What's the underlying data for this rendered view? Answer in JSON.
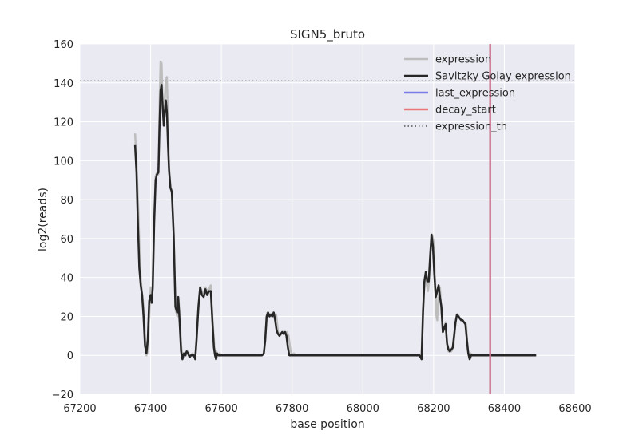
{
  "chart_data": {
    "type": "line",
    "title": "SIGN5_bruto",
    "xlabel": "base position",
    "ylabel": "log2(reads)",
    "xlim": [
      67200,
      68600
    ],
    "ylim": [
      -20,
      160
    ],
    "xticks": [
      67200,
      67400,
      67600,
      67800,
      68000,
      68200,
      68400,
      68600
    ],
    "yticks": [
      -20,
      0,
      20,
      40,
      60,
      80,
      100,
      120,
      140,
      160
    ],
    "xtick_labels": [
      "67200",
      "67400",
      "67600",
      "67800",
      "68000",
      "68200",
      "68400",
      "68600"
    ],
    "ytick_labels": [
      "−20",
      "0",
      "20",
      "40",
      "60",
      "80",
      "100",
      "120",
      "140",
      "160"
    ],
    "grid": true,
    "legend_position": "top-right",
    "colors": {
      "background": "#EAEAF2",
      "grid": "#FFFFFF",
      "expression": "#BDBDBD",
      "savitzky": "#262626",
      "last_expression": "#7B7BEA",
      "decay_start": "#E87878",
      "expression_th": "#333333",
      "overlap_line": "#A1378B"
    },
    "series": [
      {
        "name": "expression",
        "style": "solid",
        "points": [
          [
            67356,
            114
          ],
          [
            67360,
            100
          ],
          [
            67365,
            75
          ],
          [
            67370,
            45
          ],
          [
            67375,
            33
          ],
          [
            67380,
            25
          ],
          [
            67385,
            8
          ],
          [
            67388,
            0
          ],
          [
            67392,
            2
          ],
          [
            67397,
            22
          ],
          [
            67400,
            35
          ],
          [
            67403,
            28
          ],
          [
            67406,
            36
          ],
          [
            67410,
            70
          ],
          [
            67414,
            92
          ],
          [
            67418,
            94
          ],
          [
            67422,
            93
          ],
          [
            67425,
            125
          ],
          [
            67428,
            151
          ],
          [
            67431,
            150
          ],
          [
            67434,
            128
          ],
          [
            67437,
            120
          ],
          [
            67440,
            132
          ],
          [
            67443,
            141
          ],
          [
            67446,
            143
          ],
          [
            67449,
            120
          ],
          [
            67452,
            97
          ],
          [
            67456,
            86
          ],
          [
            67460,
            85
          ],
          [
            67465,
            62
          ],
          [
            67470,
            24
          ],
          [
            67475,
            20
          ],
          [
            67478,
            30
          ],
          [
            67482,
            22
          ],
          [
            67486,
            5
          ],
          [
            67490,
            0
          ],
          [
            67495,
            1
          ],
          [
            67500,
            0
          ],
          [
            67505,
            2
          ],
          [
            67510,
            0
          ],
          [
            67514,
            0
          ],
          [
            67518,
            1
          ],
          [
            67522,
            0
          ],
          [
            67526,
            0
          ],
          [
            67530,
            10
          ],
          [
            67535,
            24
          ],
          [
            67540,
            35
          ],
          [
            67545,
            33
          ],
          [
            67550,
            32
          ],
          [
            67555,
            35
          ],
          [
            67560,
            33
          ],
          [
            67565,
            34
          ],
          [
            67570,
            36
          ],
          [
            67575,
            18
          ],
          [
            67580,
            5
          ],
          [
            67583,
            0
          ],
          [
            67586,
            2
          ],
          [
            67590,
            0
          ],
          [
            67595,
            1
          ],
          [
            67600,
            0
          ],
          [
            67700,
            0
          ],
          [
            67715,
            0
          ],
          [
            67720,
            1
          ],
          [
            67725,
            12
          ],
          [
            67730,
            22
          ],
          [
            67735,
            21
          ],
          [
            67740,
            20
          ],
          [
            67745,
            22
          ],
          [
            67750,
            21
          ],
          [
            67755,
            21
          ],
          [
            67760,
            12
          ],
          [
            67765,
            10
          ],
          [
            67770,
            11
          ],
          [
            67775,
            12
          ],
          [
            67780,
            11
          ],
          [
            67785,
            12
          ],
          [
            67790,
            10
          ],
          [
            67795,
            3
          ],
          [
            67800,
            0
          ],
          [
            67805,
            1
          ],
          [
            67810,
            0
          ],
          [
            67850,
            0
          ],
          [
            68150,
            0
          ],
          [
            68162,
            0
          ],
          [
            68166,
            0
          ],
          [
            68170,
            25
          ],
          [
            68175,
            40
          ],
          [
            68180,
            37
          ],
          [
            68184,
            33
          ],
          [
            68188,
            40
          ],
          [
            68192,
            55
          ],
          [
            68196,
            62
          ],
          [
            68200,
            58
          ],
          [
            68204,
            40
          ],
          [
            68208,
            20
          ],
          [
            68210,
            18
          ],
          [
            68214,
            32
          ],
          [
            68218,
            35
          ],
          [
            68222,
            22
          ],
          [
            68226,
            12
          ],
          [
            68230,
            14
          ],
          [
            68234,
            17
          ],
          [
            68238,
            5
          ],
          [
            68242,
            2
          ],
          [
            68246,
            3
          ],
          [
            68250,
            2
          ],
          [
            68256,
            4
          ],
          [
            68262,
            17
          ],
          [
            68267,
            21
          ],
          [
            68272,
            20
          ],
          [
            68277,
            18
          ],
          [
            68282,
            18
          ],
          [
            68287,
            17
          ],
          [
            68292,
            16
          ],
          [
            68296,
            3
          ],
          [
            68300,
            0
          ],
          [
            68305,
            1
          ],
          [
            68310,
            0
          ],
          [
            68330,
            0
          ],
          [
            68400,
            0
          ],
          [
            68470,
            0
          ]
        ]
      },
      {
        "name": "Savitzky Golay expression",
        "style": "solid",
        "points": [
          [
            67356,
            108
          ],
          [
            67360,
            94
          ],
          [
            67364,
            68
          ],
          [
            67368,
            45
          ],
          [
            67372,
            36
          ],
          [
            67376,
            31
          ],
          [
            67380,
            20
          ],
          [
            67384,
            5
          ],
          [
            67388,
            1
          ],
          [
            67392,
            8
          ],
          [
            67396,
            28
          ],
          [
            67400,
            31
          ],
          [
            67403,
            27
          ],
          [
            67406,
            35
          ],
          [
            67410,
            68
          ],
          [
            67414,
            90
          ],
          [
            67418,
            93
          ],
          [
            67422,
            94
          ],
          [
            67425,
            116
          ],
          [
            67428,
            136
          ],
          [
            67431,
            139
          ],
          [
            67434,
            128
          ],
          [
            67437,
            118
          ],
          [
            67440,
            125
          ],
          [
            67443,
            131
          ],
          [
            67446,
            125
          ],
          [
            67449,
            108
          ],
          [
            67452,
            95
          ],
          [
            67456,
            86
          ],
          [
            67460,
            84
          ],
          [
            67465,
            62
          ],
          [
            67470,
            25
          ],
          [
            67475,
            22
          ],
          [
            67478,
            30
          ],
          [
            67482,
            17
          ],
          [
            67486,
            2
          ],
          [
            67490,
            -2
          ],
          [
            67494,
            1
          ],
          [
            67498,
            0
          ],
          [
            67502,
            2
          ],
          [
            67506,
            1
          ],
          [
            67510,
            -1
          ],
          [
            67514,
            0
          ],
          [
            67518,
            0
          ],
          [
            67522,
            0
          ],
          [
            67526,
            -2
          ],
          [
            67530,
            8
          ],
          [
            67535,
            25
          ],
          [
            67540,
            35
          ],
          [
            67545,
            31
          ],
          [
            67550,
            30
          ],
          [
            67555,
            34
          ],
          [
            67560,
            31
          ],
          [
            67565,
            33
          ],
          [
            67570,
            33
          ],
          [
            67575,
            16
          ],
          [
            67579,
            4
          ],
          [
            67582,
            0
          ],
          [
            67585,
            -2
          ],
          [
            67588,
            1
          ],
          [
            67592,
            0
          ],
          [
            67596,
            0
          ],
          [
            67600,
            0
          ],
          [
            67715,
            0
          ],
          [
            67720,
            1
          ],
          [
            67724,
            8
          ],
          [
            67728,
            20
          ],
          [
            67732,
            22
          ],
          [
            67736,
            20
          ],
          [
            67740,
            21
          ],
          [
            67744,
            20
          ],
          [
            67748,
            22
          ],
          [
            67752,
            18
          ],
          [
            67756,
            13
          ],
          [
            67760,
            11
          ],
          [
            67764,
            10
          ],
          [
            67768,
            11
          ],
          [
            67772,
            12
          ],
          [
            67776,
            11
          ],
          [
            67780,
            12
          ],
          [
            67784,
            10
          ],
          [
            67788,
            4
          ],
          [
            67792,
            0
          ],
          [
            67796,
            0
          ],
          [
            67800,
            0
          ],
          [
            68150,
            0
          ],
          [
            68160,
            0
          ],
          [
            68163,
            -1
          ],
          [
            68166,
            -2
          ],
          [
            68170,
            22
          ],
          [
            68174,
            38
          ],
          [
            68178,
            43
          ],
          [
            68182,
            38
          ],
          [
            68186,
            38
          ],
          [
            68190,
            50
          ],
          [
            68194,
            62
          ],
          [
            68198,
            56
          ],
          [
            68202,
            42
          ],
          [
            68206,
            30
          ],
          [
            68210,
            33
          ],
          [
            68214,
            36
          ],
          [
            68218,
            30
          ],
          [
            68222,
            25
          ],
          [
            68226,
            12
          ],
          [
            68230,
            14
          ],
          [
            68234,
            16
          ],
          [
            68238,
            6
          ],
          [
            68242,
            3
          ],
          [
            68246,
            2
          ],
          [
            68250,
            3
          ],
          [
            68254,
            4
          ],
          [
            68258,
            10
          ],
          [
            68262,
            17
          ],
          [
            68266,
            21
          ],
          [
            68270,
            20
          ],
          [
            68274,
            19
          ],
          [
            68278,
            18
          ],
          [
            68282,
            18
          ],
          [
            68286,
            17
          ],
          [
            68290,
            16
          ],
          [
            68294,
            8
          ],
          [
            68298,
            1
          ],
          [
            68302,
            -2
          ],
          [
            68306,
            0
          ],
          [
            68310,
            0
          ],
          [
            68400,
            0
          ],
          [
            68490,
            0
          ]
        ]
      },
      {
        "name": "last_expression",
        "style": "vline",
        "x": 68360
      },
      {
        "name": "decay_start",
        "style": "vline",
        "x": 68360
      },
      {
        "name": "expression_th",
        "style": "dotted-hline",
        "y": 141
      }
    ],
    "legend": [
      "expression",
      "Savitzky Golay expression",
      "last_expression",
      "decay_start",
      "expression_th"
    ]
  }
}
